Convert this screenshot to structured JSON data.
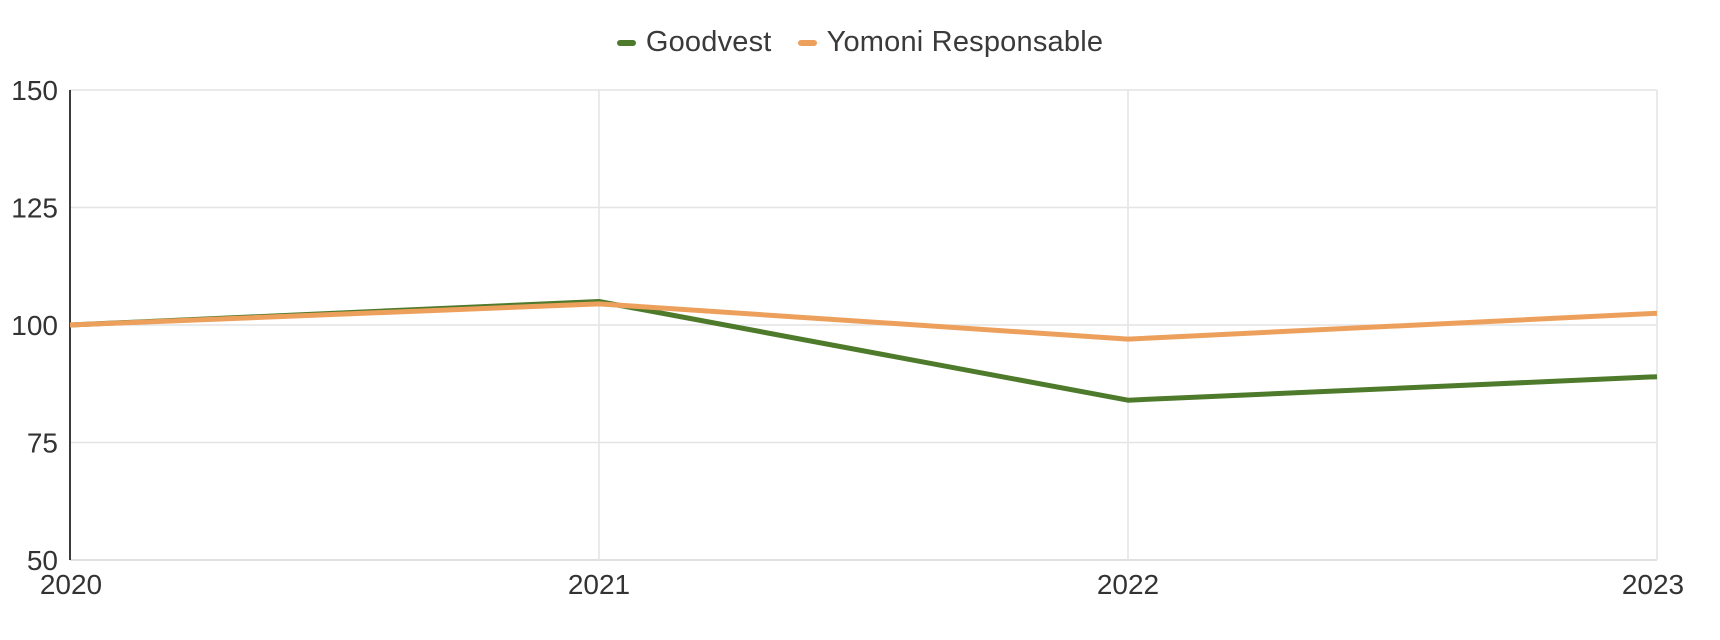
{
  "chart_data": {
    "type": "line",
    "title": "",
    "xlabel": "",
    "ylabel": "",
    "categories": [
      "2020",
      "2021",
      "2022",
      "2023"
    ],
    "series": [
      {
        "name": "Goodvest",
        "color": "#4e7a2b",
        "values": [
          100,
          105,
          84,
          89
        ]
      },
      {
        "name": "Yomoni Responsable",
        "color": "#eda05c",
        "values": [
          100,
          104.5,
          97,
          102.5
        ]
      }
    ],
    "ylim": [
      50,
      150
    ],
    "yticks": [
      50,
      75,
      100,
      125,
      150
    ],
    "grid": true,
    "legend_position": "top"
  },
  "colors": {
    "background": "#ffffff",
    "gridline": "#e4e4e4",
    "x_axis_line": "#d6d6d6",
    "y_axis_line": "#3c3c3c",
    "tick_text": "#333333",
    "legend_text": "#3a3a3a"
  },
  "layout": {
    "tick_font_size": 28,
    "line_width": 5
  }
}
